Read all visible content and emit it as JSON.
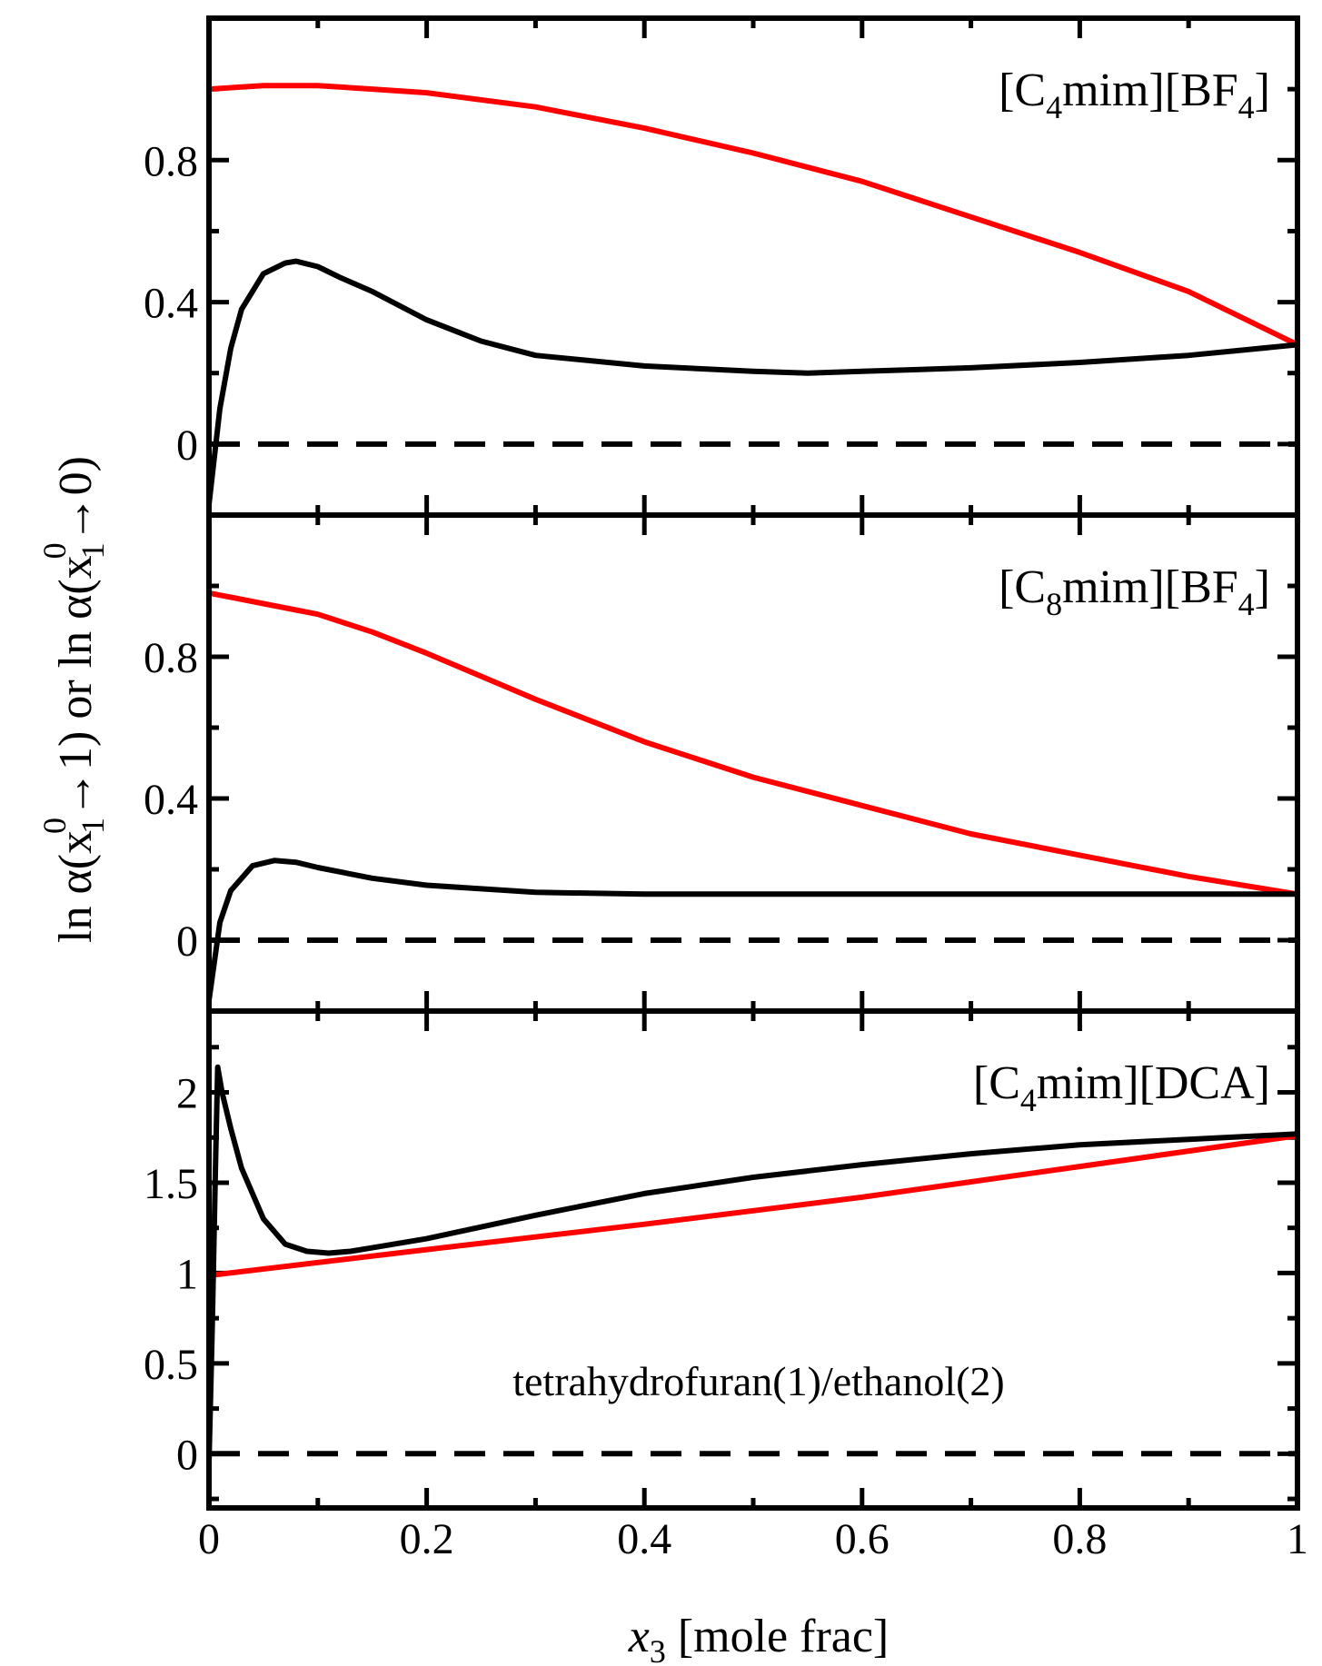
{
  "chart_data": [
    {
      "type": "line",
      "panel": "top",
      "label": "[C4mim][BF4]",
      "label_main": "[C",
      "label_sub1": "4",
      "label_mid": "mim][BF",
      "label_sub2": "4",
      "label_end": "]",
      "xlim": [
        0,
        1
      ],
      "ylim": [
        -0.2,
        1.2
      ],
      "yticks": [
        0,
        0.4,
        0.8
      ],
      "ytick_labels": [
        "0",
        "0.4",
        "0.8"
      ],
      "y_minor_step": 0.2,
      "series": [
        {
          "name": "ln α(x1⁰→1)",
          "color": "#ff0000",
          "style": "solid",
          "x": [
            0,
            0.05,
            0.1,
            0.15,
            0.2,
            0.3,
            0.4,
            0.5,
            0.6,
            0.7,
            0.8,
            0.9,
            1.0
          ],
          "y": [
            1.0,
            1.01,
            1.01,
            1.0,
            0.99,
            0.95,
            0.89,
            0.82,
            0.74,
            0.64,
            0.54,
            0.43,
            0.28
          ]
        },
        {
          "name": "ln α(x1⁰→0)",
          "color": "#000000",
          "style": "solid",
          "x": [
            0,
            0.01,
            0.02,
            0.03,
            0.05,
            0.07,
            0.08,
            0.1,
            0.12,
            0.15,
            0.2,
            0.25,
            0.3,
            0.4,
            0.5,
            0.55,
            0.6,
            0.7,
            0.8,
            0.9,
            1.0
          ],
          "y": [
            -0.17,
            0.1,
            0.27,
            0.38,
            0.48,
            0.51,
            0.515,
            0.5,
            0.47,
            0.43,
            0.35,
            0.29,
            0.25,
            0.22,
            0.205,
            0.2,
            0.205,
            0.215,
            0.23,
            0.25,
            0.28
          ]
        },
        {
          "name": "zero",
          "color": "#000000",
          "style": "dashed",
          "x": [
            0,
            1
          ],
          "y": [
            0,
            0
          ]
        }
      ]
    },
    {
      "type": "line",
      "panel": "middle",
      "label": "[C8mim][BF4]",
      "label_main": "[C",
      "label_sub1": "8",
      "label_mid": "mim][BF",
      "label_sub2": "4",
      "label_end": "]",
      "xlim": [
        0,
        1
      ],
      "ylim": [
        -0.2,
        1.2
      ],
      "yticks": [
        0,
        0.4,
        0.8
      ],
      "ytick_labels": [
        "0",
        "0.4",
        "0.8"
      ],
      "y_minor_step": 0.2,
      "series": [
        {
          "name": "ln α(x1⁰→1)",
          "color": "#ff0000",
          "style": "solid",
          "x": [
            0,
            0.05,
            0.1,
            0.15,
            0.2,
            0.3,
            0.4,
            0.5,
            0.6,
            0.7,
            0.8,
            0.9,
            1.0
          ],
          "y": [
            0.98,
            0.95,
            0.92,
            0.87,
            0.81,
            0.68,
            0.56,
            0.46,
            0.38,
            0.3,
            0.24,
            0.18,
            0.13
          ]
        },
        {
          "name": "ln α(x1⁰→0)",
          "color": "#000000",
          "style": "solid",
          "x": [
            0,
            0.01,
            0.02,
            0.04,
            0.06,
            0.08,
            0.1,
            0.15,
            0.2,
            0.3,
            0.4,
            0.5,
            0.6,
            0.8,
            1.0
          ],
          "y": [
            -0.17,
            0.05,
            0.14,
            0.21,
            0.225,
            0.22,
            0.205,
            0.175,
            0.155,
            0.135,
            0.13,
            0.13,
            0.13,
            0.13,
            0.13
          ]
        },
        {
          "name": "zero",
          "color": "#000000",
          "style": "dashed",
          "x": [
            0,
            1
          ],
          "y": [
            0,
            0
          ]
        }
      ]
    },
    {
      "type": "line",
      "panel": "bottom",
      "label": "[C4mim][DCA]",
      "label_main": "[C",
      "label_sub1": "4",
      "label_mid": "mim][DCA]",
      "label_sub2": "",
      "label_end": "",
      "annotation": "tetrahydrofuran(1)/ethanol(2)",
      "xlim": [
        0,
        1
      ],
      "ylim": [
        -0.3,
        2.45
      ],
      "yticks": [
        0,
        0.5,
        1,
        1.5,
        2
      ],
      "ytick_labels": [
        "0",
        "0.5",
        "1",
        "1.5",
        "2"
      ],
      "y_minor_step": 0.25,
      "xticks": [
        0,
        0.2,
        0.4,
        0.6,
        0.8,
        1
      ],
      "xtick_labels": [
        "0",
        "0.2",
        "0.4",
        "0.6",
        "0.8",
        "1"
      ],
      "series": [
        {
          "name": "ln α(x1⁰→1)",
          "color": "#ff0000",
          "style": "solid",
          "x": [
            0.005,
            0.2,
            0.4,
            0.6,
            0.8,
            1.0
          ],
          "y": [
            0.99,
            1.13,
            1.27,
            1.42,
            1.59,
            1.76
          ]
        },
        {
          "name": "ln α(x1⁰→0)",
          "color": "#000000",
          "style": "solid",
          "x": [
            0,
            0.003,
            0.006,
            0.008,
            0.012,
            0.02,
            0.03,
            0.05,
            0.07,
            0.09,
            0.11,
            0.13,
            0.15,
            0.2,
            0.3,
            0.4,
            0.5,
            0.6,
            0.7,
            0.8,
            0.9,
            1.0
          ],
          "y": [
            -0.05,
            0.7,
            1.6,
            2.14,
            2.0,
            1.8,
            1.58,
            1.3,
            1.16,
            1.12,
            1.11,
            1.12,
            1.14,
            1.19,
            1.32,
            1.44,
            1.53,
            1.6,
            1.66,
            1.71,
            1.74,
            1.77
          ]
        },
        {
          "name": "zero",
          "color": "#000000",
          "style": "dashed",
          "x": [
            0,
            1
          ],
          "y": [
            0,
            0
          ]
        }
      ]
    }
  ],
  "axes": {
    "ylabel_part1": "ln α(x",
    "ylabel_sub": "1",
    "ylabel_sup": "0",
    "ylabel_part2": "→1)  or  ln α(x",
    "ylabel_sub2": "1",
    "ylabel_sup2": "0",
    "ylabel_part3": "→0)",
    "xlabel_var": "x",
    "xlabel_sub": "3",
    "xlabel_rest": " [mole frac]"
  }
}
